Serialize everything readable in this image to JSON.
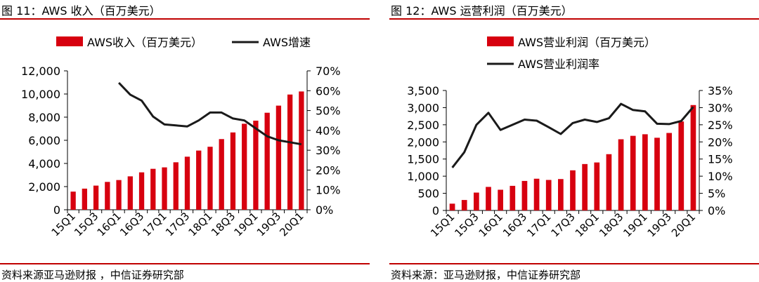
{
  "figures": [
    {
      "title": "图 11：AWS 收入（百万美元）",
      "source": "资料来源亚马逊财报 ，中信证券研究部"
    },
    {
      "title": "图 12：AWS 运营利润（百万美元）",
      "source": "资料来源：亚马逊财报，中信证券研究部"
    }
  ],
  "colors": {
    "accent_rule": "#c00000",
    "bar": "#d7000f",
    "line": "#1a1a1a"
  },
  "chart_data": [
    {
      "type": "bar",
      "categories": [
        "15Q1",
        "15Q2",
        "15Q3",
        "15Q4",
        "16Q1",
        "16Q2",
        "16Q3",
        "16Q4",
        "17Q1",
        "17Q2",
        "17Q3",
        "17Q4",
        "18Q1",
        "18Q2",
        "18Q3",
        "18Q4",
        "19Q1",
        "19Q2",
        "19Q3",
        "19Q4",
        "20Q1"
      ],
      "x_tick_labels": [
        "15Q1",
        "",
        "15Q3",
        "",
        "16Q1",
        "",
        "16Q3",
        "",
        "17Q1",
        "",
        "17Q3",
        "",
        "18Q1",
        "",
        "18Q3",
        "",
        "19Q1",
        "",
        "19Q3",
        "",
        "20Q1"
      ],
      "series": [
        {
          "name": "AWS收入（百万美元）",
          "kind": "bar",
          "axis": "left",
          "values": [
            1566,
            1824,
            2085,
            2405,
            2566,
            2886,
            3231,
            3536,
            3661,
            4100,
            4584,
            5113,
            5442,
            6105,
            6679,
            7430,
            7696,
            8381,
            8995,
            9954,
            10219
          ]
        },
        {
          "name": "AWS增速",
          "kind": "line",
          "axis": "right",
          "values": [
            null,
            null,
            null,
            null,
            0.64,
            0.58,
            0.55,
            0.47,
            0.43,
            0.425,
            0.42,
            0.45,
            0.49,
            0.49,
            0.46,
            0.45,
            0.41,
            0.37,
            0.35,
            0.34,
            0.33
          ]
        }
      ],
      "ylim": [
        0,
        12000
      ],
      "y_ticks": [
        "0",
        "2,000",
        "4,000",
        "6,000",
        "8,000",
        "10,000",
        "12,000"
      ],
      "y2lim": [
        0,
        0.7
      ],
      "y2_ticks": [
        "0%",
        "10%",
        "20%",
        "30%",
        "40%",
        "50%",
        "60%",
        "70%"
      ],
      "legend_position": "top",
      "grid": false
    },
    {
      "type": "bar",
      "categories": [
        "15Q1",
        "15Q2",
        "15Q3",
        "15Q4",
        "16Q1",
        "16Q2",
        "16Q3",
        "16Q4",
        "17Q1",
        "17Q2",
        "17Q3",
        "17Q4",
        "18Q1",
        "18Q2",
        "18Q3",
        "18Q4",
        "19Q1",
        "19Q2",
        "19Q3",
        "19Q4",
        "20Q1"
      ],
      "x_tick_labels": [
        "15Q1",
        "",
        "15Q3",
        "",
        "16Q1",
        "",
        "16Q3",
        "",
        "17Q1",
        "",
        "17Q3",
        "",
        "18Q1",
        "",
        "18Q3",
        "",
        "19Q1",
        "",
        "19Q3",
        "",
        "20Q1"
      ],
      "series": [
        {
          "name": "AWS营业利润（百万美元）",
          "kind": "bar",
          "axis": "left",
          "values": [
            198,
            305,
            521,
            687,
            604,
            718,
            861,
            926,
            890,
            916,
            1171,
            1354,
            1400,
            1642,
            2077,
            2177,
            2223,
            2121,
            2261,
            2596,
            3075
          ]
        },
        {
          "name": "AWS营业利润率",
          "kind": "line",
          "axis": "right",
          "values": [
            0.125,
            0.17,
            0.25,
            0.285,
            0.235,
            0.25,
            0.265,
            0.262,
            0.243,
            0.223,
            0.255,
            0.265,
            0.258,
            0.269,
            0.311,
            0.293,
            0.289,
            0.253,
            0.252,
            0.261,
            0.302
          ]
        }
      ],
      "ylim": [
        0,
        3500
      ],
      "y_ticks": [
        "0",
        "500",
        "1,000",
        "1,500",
        "2,000",
        "2,500",
        "3,000",
        "3,500"
      ],
      "y2lim": [
        0,
        0.35
      ],
      "y2_ticks": [
        "0%",
        "5%",
        "10%",
        "15%",
        "20%",
        "25%",
        "30%",
        "35%"
      ],
      "legend_position": "top-left-stacked",
      "grid": false
    }
  ]
}
